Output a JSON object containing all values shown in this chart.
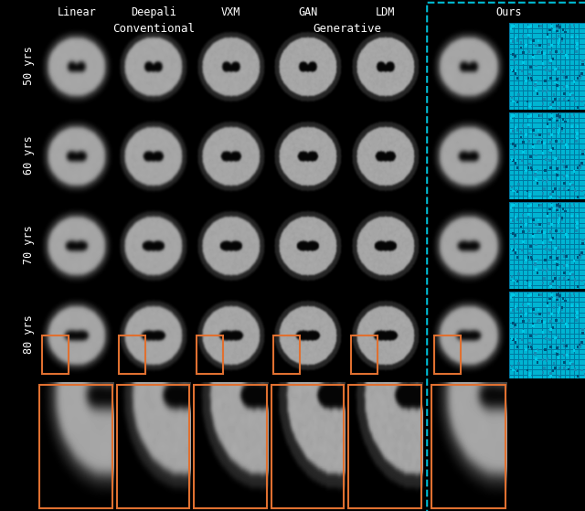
{
  "background_color": "#000000",
  "text_color": "#ffffff",
  "cyan_color": "#00bcd4",
  "orange_color": "#e07030",
  "col_labels": [
    "Linear",
    "Deepali",
    "VXM",
    "GAN",
    "LDM",
    "Ours"
  ],
  "row_labels": [
    "50 yrs",
    "60 yrs",
    "70 yrs",
    "80 yrs"
  ],
  "group_labels": [
    "Conventional",
    "Generative"
  ],
  "group_label_color": "#ffffff",
  "figsize": [
    6.4,
    5.59
  ],
  "dpi": 100,
  "font_family": "monospace",
  "title_fontsize": 9,
  "label_fontsize": 8.5,
  "group_label_fontsize": 9
}
